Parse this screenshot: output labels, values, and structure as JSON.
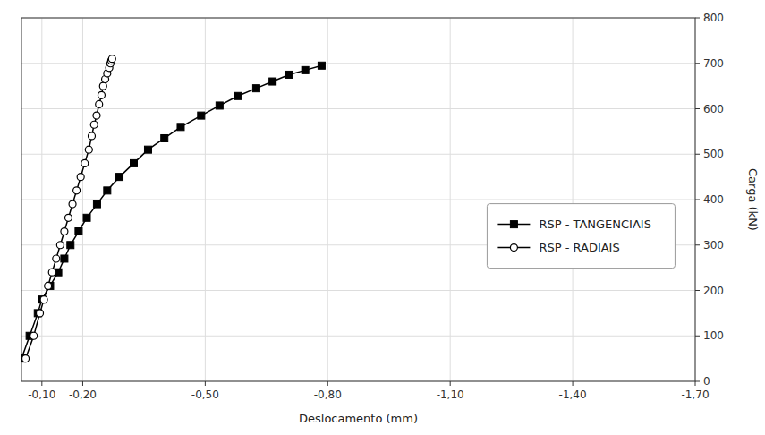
{
  "chart_data": {
    "type": "line",
    "xlabel": "Deslocamento (mm)",
    "ylabel": "Carga (kN)",
    "xlim": [
      -0.05,
      -1.7
    ],
    "ylim": [
      0,
      800
    ],
    "xticks": [
      {
        "value": -0.1,
        "label": "-0,10"
      },
      {
        "value": -0.2,
        "label": "-0,20"
      },
      {
        "value": -0.5,
        "label": "-0,50"
      },
      {
        "value": -0.8,
        "label": "-0,80"
      },
      {
        "value": -1.1,
        "label": "-1,10"
      },
      {
        "value": -1.4,
        "label": "-1,40"
      },
      {
        "value": -1.7,
        "label": "-1,70"
      }
    ],
    "yticks": [
      0,
      100,
      200,
      300,
      400,
      500,
      600,
      700,
      800
    ],
    "grid": true,
    "legend": "right",
    "series": [
      {
        "name": "RSP - TANGENCIAIS",
        "color": "#000000",
        "marker": "square",
        "x": [
          -0.05,
          -0.07,
          -0.09,
          -0.1,
          -0.12,
          -0.14,
          -0.155,
          -0.17,
          -0.19,
          -0.21,
          -0.235,
          -0.26,
          -0.29,
          -0.325,
          -0.36,
          -0.4,
          -0.44,
          -0.49,
          -0.535,
          -0.58,
          -0.625,
          -0.665,
          -0.705,
          -0.745,
          -0.785
        ],
        "values": [
          50,
          100,
          150,
          180,
          210,
          240,
          270,
          300,
          330,
          360,
          390,
          420,
          450,
          480,
          510,
          535,
          560,
          585,
          607,
          628,
          645,
          660,
          675,
          685,
          695
        ]
      },
      {
        "name": "RSP - RADIAIS",
        "color": "#000000",
        "marker": "open-circle",
        "x": [
          -0.06,
          -0.08,
          -0.095,
          -0.105,
          -0.115,
          -0.125,
          -0.135,
          -0.145,
          -0.155,
          -0.165,
          -0.175,
          -0.185,
          -0.195,
          -0.205,
          -0.215,
          -0.222,
          -0.228,
          -0.234,
          -0.24,
          -0.246,
          -0.25,
          -0.255,
          -0.26,
          -0.265,
          -0.268,
          -0.27,
          -0.272
        ],
        "values": [
          50,
          100,
          150,
          180,
          210,
          240,
          270,
          300,
          330,
          360,
          390,
          420,
          450,
          480,
          510,
          540,
          565,
          585,
          610,
          630,
          650,
          665,
          678,
          690,
          700,
          706,
          710
        ]
      }
    ]
  }
}
